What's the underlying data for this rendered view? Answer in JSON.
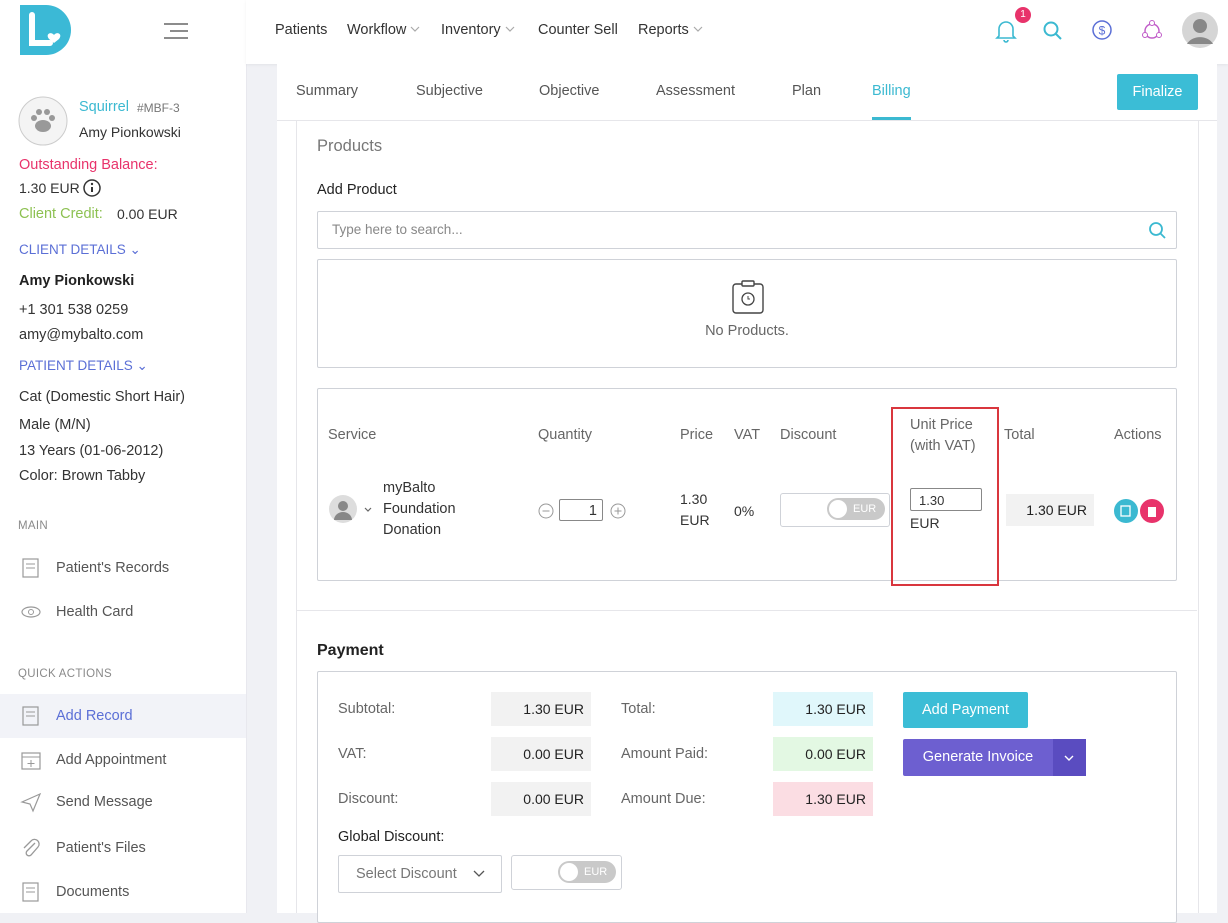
{
  "nav": {
    "items": [
      {
        "label": "Patients",
        "dropdown": false
      },
      {
        "label": "Workflow",
        "dropdown": true
      },
      {
        "label": "Inventory",
        "dropdown": true
      },
      {
        "label": "Counter Sell",
        "dropdown": false
      },
      {
        "label": "Reports",
        "dropdown": true
      }
    ],
    "notification_count": "1"
  },
  "sidebar": {
    "patient": {
      "name": "Squirrel",
      "id": "#MBF-3",
      "owner": "Amy Pionkowski"
    },
    "balance": {
      "label": "Outstanding Balance:",
      "value": "1.30 EUR"
    },
    "credit": {
      "label": "Client Credit:",
      "value": "0.00 EUR"
    },
    "client_details": {
      "title": "CLIENT DETAILS",
      "name": "Amy Pionkowski",
      "phone": "+1 301 538 0259",
      "email": "amy@mybalto.com"
    },
    "patient_details": {
      "title": "PATIENT DETAILS",
      "lines": [
        "Cat (Domestic Short Hair)",
        "Male (M/N)",
        "13 Years (01-06-2012)",
        "Color: Brown Tabby"
      ]
    },
    "main": {
      "title": "MAIN",
      "items": [
        "Patient's Records",
        "Health Card"
      ]
    },
    "quick_actions": {
      "title": "QUICK ACTIONS",
      "items": [
        "Add Record",
        "Add Appointment",
        "Send Message",
        "Patient's Files",
        "Documents"
      ],
      "active_index": 0
    }
  },
  "tabs": {
    "items": [
      "Summary",
      "Subjective",
      "Objective",
      "Assessment",
      "Plan",
      "Billing"
    ],
    "active_index": 5
  },
  "finalize": "Finalize",
  "products": {
    "title": "Products",
    "add_label": "Add Product",
    "search_placeholder": "Type here to search...",
    "empty": "No Products."
  },
  "services": {
    "headers": [
      "Service",
      "Quantity",
      "Price",
      "VAT",
      "Discount",
      "Unit Price (with VAT)",
      "Total",
      "Actions"
    ],
    "rows": [
      {
        "name": "myBalto Foundation Donation",
        "quantity": "1",
        "price": "1.30 EUR",
        "vat": "0%",
        "discount_unit": "EUR",
        "unit_price": "1.30",
        "unit_price_currency": "EUR",
        "total": "1.30 EUR"
      }
    ]
  },
  "payment": {
    "title": "Payment",
    "subtotal": {
      "label": "Subtotal:",
      "value": "1.30 EUR"
    },
    "vat": {
      "label": "VAT:",
      "value": "0.00 EUR"
    },
    "discount": {
      "label": "Discount:",
      "value": "0.00 EUR"
    },
    "total": {
      "label": "Total:",
      "value": "1.30 EUR"
    },
    "amount_paid": {
      "label": "Amount Paid:",
      "value": "0.00 EUR"
    },
    "amount_due": {
      "label": "Amount Due:",
      "value": "1.30 EUR"
    },
    "add_payment": "Add Payment",
    "generate_invoice": "Generate Invoice",
    "global_discount": {
      "label": "Global Discount:",
      "placeholder": "Select Discount",
      "unit": "EUR"
    }
  }
}
